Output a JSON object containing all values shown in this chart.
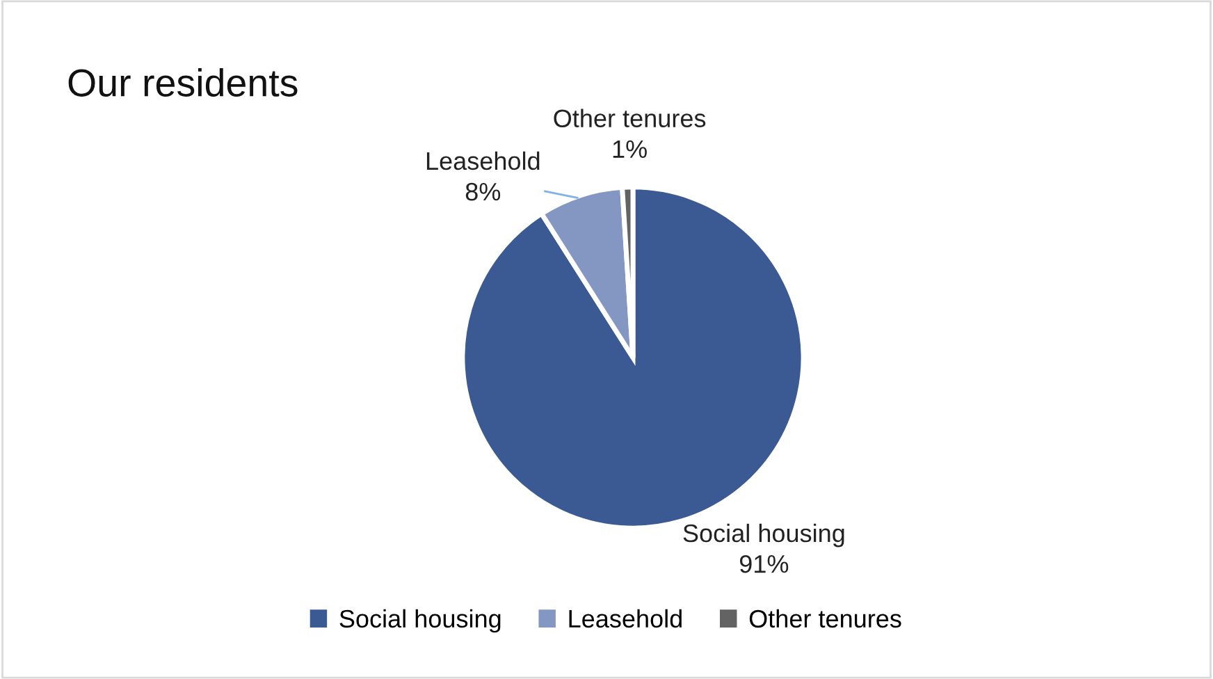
{
  "chart_data": {
    "type": "pie",
    "title": "Our residents",
    "categories": [
      "Social housing",
      "Leasehold",
      "Other tenures"
    ],
    "values": [
      91,
      8,
      1
    ],
    "colors": [
      "#3b5a93",
      "#8497c3",
      "#636363"
    ],
    "value_labels": [
      "91%",
      "8%",
      "1%"
    ],
    "legend": "bottom"
  }
}
